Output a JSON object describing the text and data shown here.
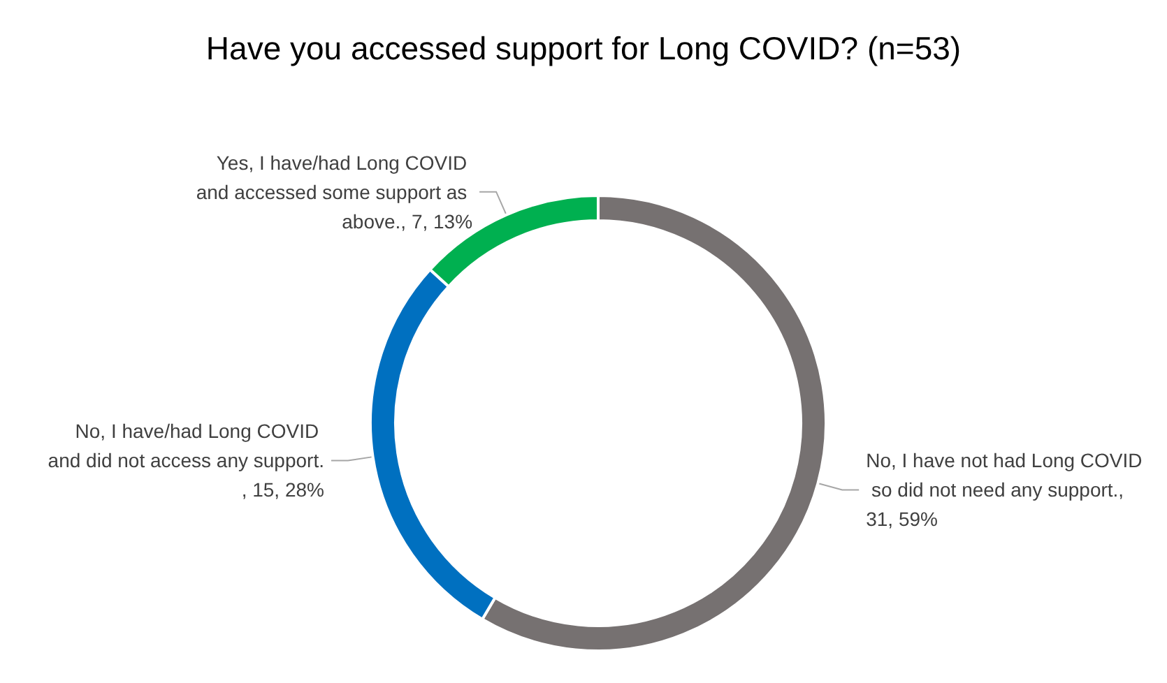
{
  "chart_data": {
    "type": "donut",
    "title": "Have you accessed support for Long COVID? (n=53)",
    "categories": [
      "No, I have not had Long COVID so did not need any support.",
      "No, I have/had Long COVID and did not access any support.",
      "Yes, I have/had Long COVID and accessed some support as above."
    ],
    "values": [
      31,
      15,
      7
    ],
    "value_labels": [
      ", 31, 59%",
      ", 15, 28%",
      ", 7, 13%"
    ],
    "colors": [
      "#767171",
      "#0070c0",
      "#00b050"
    ],
    "legend": false
  }
}
